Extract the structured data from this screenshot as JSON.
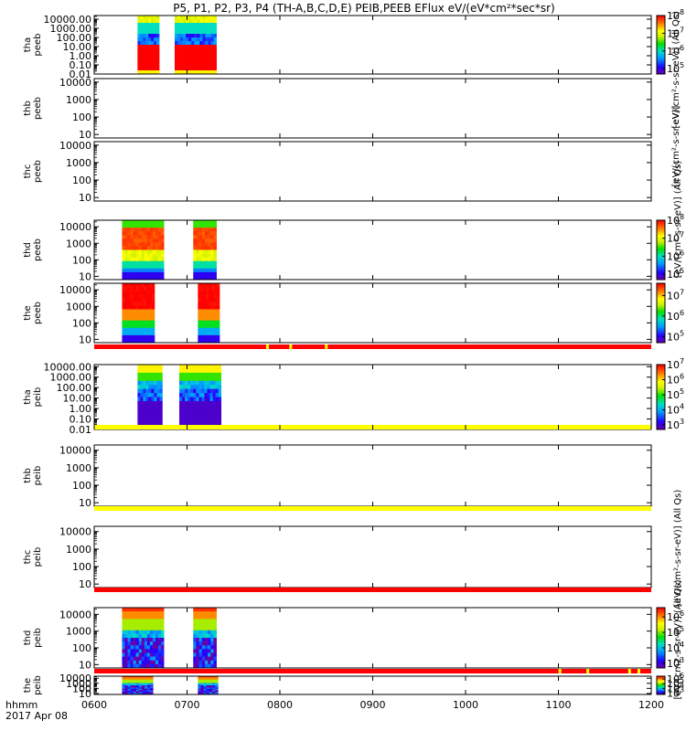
{
  "chart_data": {
    "type": "heatmap",
    "title": "P5, P1, P2, P3, P4 (TH-A,B,C,D,E) PEIB,PEEB EFlux eV/(eV*cm²*sec*sr)",
    "footer": {
      "format": "hhmm",
      "date": "2017 Apr 08"
    },
    "x_axis": {
      "range": [
        0,
        360
      ],
      "ticks": [
        {
          "v": 0,
          "label": "0600"
        },
        {
          "v": 60,
          "label": "0700"
        },
        {
          "v": 120,
          "label": "0800"
        },
        {
          "v": 180,
          "label": "0900"
        },
        {
          "v": 240,
          "label": "1000"
        },
        {
          "v": 300,
          "label": "1100"
        },
        {
          "v": 360,
          "label": "1200"
        }
      ]
    },
    "ylabels": {
      "short": [
        "10000",
        "1000",
        "100",
        "10"
      ],
      "long": [
        "10000.00",
        "1000.00",
        "100.00",
        "10.00",
        "1.00",
        "0.10",
        "0.01"
      ]
    },
    "colorbar_labels": {
      "full": "[eV/(cm²-s-sr-eV)] (All Qs)",
      "b": "[eV/(cm²-s-sr-eV)] (All Qs)",
      "c": "[eV/(cm²-s-sr-eV)] (All Qs)",
      "trunc": "[eV/(cm²-s-sr-eV)]",
      "peib": "[eV/(cm2-s-sr-eV)] (All Qs)"
    },
    "panels": [
      {
        "id": "tha-peeb",
        "probe": "tha",
        "inst": "peeb",
        "ylog": [
          -2,
          4.4
        ],
        "yticks": "long",
        "cb": {
          "exps": [
            5,
            6,
            7,
            8
          ],
          "range": [
            4.7,
            8
          ]
        },
        "segments": [
          {
            "x0": 28,
            "x1": 42,
            "profile": "ion_a"
          },
          {
            "x0": 52,
            "x1": 79,
            "profile": "ion_a"
          }
        ]
      },
      {
        "id": "thb-peeb",
        "probe": "thb",
        "inst": "peeb",
        "ylog": [
          0.8,
          4.2
        ],
        "yticks": "short",
        "segments": []
      },
      {
        "id": "thc-peeb",
        "probe": "thc",
        "inst": "peeb",
        "ylog": [
          0.8,
          4.2
        ],
        "yticks": "short",
        "segments": []
      },
      {
        "id": "thd-peeb",
        "probe": "thd",
        "inst": "peeb",
        "ylog": [
          0.8,
          4.4
        ],
        "yticks": "short",
        "cb": {
          "exps": [
            5,
            6,
            7,
            8
          ],
          "range": [
            4.7,
            8
          ]
        },
        "segments": [
          {
            "x0": 18,
            "x1": 45,
            "profile": "elec"
          },
          {
            "x0": 64,
            "x1": 79,
            "profile": "elec"
          }
        ]
      },
      {
        "id": "the-peeb",
        "probe": "the",
        "inst": "peeb",
        "ylog": [
          0.8,
          4.4
        ],
        "yticks": "short",
        "cb": {
          "exps": [
            5,
            6,
            7
          ],
          "range": [
            4.7,
            7.6
          ]
        },
        "segments": [
          {
            "x0": 18,
            "x1": 39,
            "profile": "elec2"
          },
          {
            "x0": 67,
            "x1": 81,
            "profile": "elec2"
          }
        ]
      },
      {
        "id": "tha-peib",
        "probe": "tha",
        "inst": "peib",
        "ylog": [
          -2,
          4.2
        ],
        "yticks": "long",
        "cb": {
          "exps": [
            3,
            4,
            5,
            6,
            7
          ],
          "range": [
            2.7,
            7
          ]
        },
        "segments": [
          {
            "x0": 28,
            "x1": 44,
            "profile": "ion_b"
          },
          {
            "x0": 55,
            "x1": 82,
            "profile": "ion_b"
          }
        ]
      },
      {
        "id": "thb-peib",
        "probe": "thb",
        "inst": "peib",
        "ylog": [
          0.8,
          4.3
        ],
        "yticks": "short",
        "segments": []
      },
      {
        "id": "thc-peib",
        "probe": "thc",
        "inst": "peib",
        "ylog": [
          0.8,
          4.3
        ],
        "yticks": "short",
        "segments": []
      },
      {
        "id": "thd-peib",
        "probe": "thd",
        "inst": "peib",
        "ylog": [
          0.8,
          4.4
        ],
        "yticks": "short",
        "cb": {
          "exps": [
            3,
            4,
            5,
            6
          ],
          "range": [
            2.7,
            6.6
          ]
        },
        "segments": [
          {
            "x0": 18,
            "x1": 45,
            "profile": "ion_c"
          },
          {
            "x0": 64,
            "x1": 79,
            "profile": "ion_c"
          }
        ]
      },
      {
        "id": "the-peib",
        "probe": "the",
        "inst": "peib",
        "ylog": [
          0.8,
          4.4
        ],
        "yticks": "short",
        "cb": {
          "exps": [
            3,
            4,
            5,
            6
          ],
          "range": [
            2.7,
            6.6
          ]
        },
        "segments": [
          {
            "x0": 18,
            "x1": 38,
            "profile": "ion_c"
          },
          {
            "x0": 67,
            "x1": 80,
            "profile": "ion_c"
          }
        ]
      }
    ],
    "flag_bars": [
      {
        "id": "flag-1",
        "color": "#ff0000",
        "markers": [
          {
            "x": 112,
            "color": "#ffff00"
          },
          {
            "x": 127,
            "color": "#ffff00"
          },
          {
            "x": 150,
            "color": "#ffff00"
          }
        ]
      },
      {
        "id": "flag-2",
        "color": "#ffff00",
        "markers": []
      },
      {
        "id": "flag-3",
        "color": "#ffff00",
        "markers": []
      },
      {
        "id": "flag-4",
        "color": "#ff0000",
        "markers": []
      },
      {
        "id": "flag-5",
        "color": "#ff0000",
        "markers": [
          {
            "x": 301,
            "color": "#ffff00"
          },
          {
            "x": 319,
            "color": "#ffff00"
          },
          {
            "x": 346,
            "color": "#ffff00"
          },
          {
            "x": 352,
            "color": "#ffff00"
          }
        ]
      }
    ]
  }
}
